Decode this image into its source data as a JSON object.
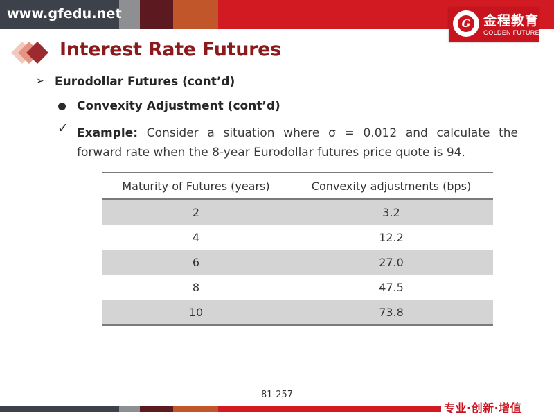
{
  "header": {
    "site_url": "www.gfedu.net",
    "logo": {
      "chinese_name": "金程教育",
      "english_name": "GOLDEN FUTURE",
      "seal_letter": "G"
    }
  },
  "slide": {
    "title": "Interest Rate Futures",
    "level1": {
      "bullet": "➢",
      "text": "Eurodollar Futures (cont’d)"
    },
    "level2": {
      "text": "Convexity Adjustment (cont’d)"
    },
    "example": {
      "check": "✓",
      "label": "Example:",
      "line1": "Consider a situation where σ = 0.012 and calculate the",
      "line2": "forward rate when the 8-year Eurodollar futures price quote is 94."
    },
    "table": {
      "headers": [
        "Maturity of Futures (years)",
        "Convexity adjustments (bps)"
      ],
      "rows": [
        [
          "2",
          "3.2"
        ],
        [
          "4",
          "12.2"
        ],
        [
          "6",
          "27.0"
        ],
        [
          "8",
          "47.5"
        ],
        [
          "10",
          "73.8"
        ]
      ]
    }
  },
  "footer": {
    "page_number": "81-257",
    "slogan": "专业·创新·增值"
  },
  "colors": {
    "brand_red": "#c8141f",
    "title_maroon": "#8b1a1d",
    "header_dark": "#3a3f46",
    "row_shade": "#d4d4d4"
  }
}
